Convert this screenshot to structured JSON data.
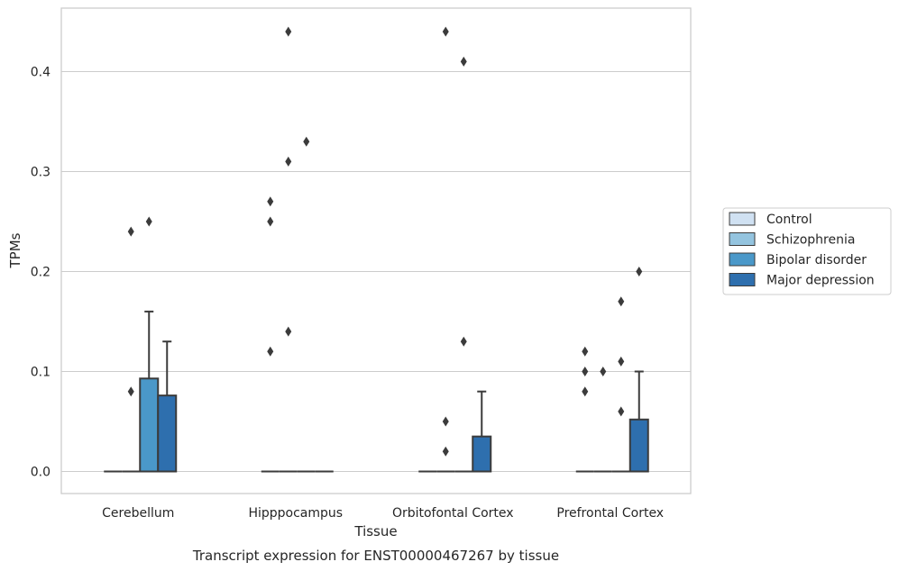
{
  "caption": "Transcript expression for ENST00000467267 by tissue",
  "chart_data": {
    "type": "box",
    "xlabel": "Tissue",
    "ylabel": "TPMs",
    "ylim": [
      -0.022,
      0.465
    ],
    "yticks": [
      0.0,
      0.1,
      0.2,
      0.3,
      0.4
    ],
    "ytick_labels": [
      "0.0",
      "0.1",
      "0.2",
      "0.3",
      "0.4"
    ],
    "grid": "horizontal",
    "legend_position": "right",
    "categories": [
      "Cerebellum",
      "Hipppocampus",
      "Orbitofontal Cortex",
      "Prefrontal Cortex"
    ],
    "series": [
      {
        "name": "Control",
        "color": "#d0e1f2",
        "boxes": [
          {
            "q1": 0,
            "median": 0,
            "q3": 0,
            "whisker_low": 0,
            "whisker_high": 0,
            "outliers": []
          },
          {
            "q1": 0,
            "median": 0,
            "q3": 0,
            "whisker_low": 0,
            "whisker_high": 0,
            "outliers": [
              0.12,
              0.25,
              0.27
            ]
          },
          {
            "q1": 0,
            "median": 0,
            "q3": 0,
            "whisker_low": 0,
            "whisker_high": 0,
            "outliers": []
          },
          {
            "q1": 0,
            "median": 0,
            "q3": 0,
            "whisker_low": 0,
            "whisker_high": 0,
            "outliers": [
              0.08,
              0.1,
              0.12
            ]
          }
        ]
      },
      {
        "name": "Schizophrenia",
        "color": "#94c4df",
        "boxes": [
          {
            "q1": 0,
            "median": 0,
            "q3": 0,
            "whisker_low": 0,
            "whisker_high": 0,
            "outliers": [
              0.08,
              0.24
            ]
          },
          {
            "q1": 0,
            "median": 0,
            "q3": 0,
            "whisker_low": 0,
            "whisker_high": 0,
            "outliers": [
              0.14,
              0.31,
              0.44
            ]
          },
          {
            "q1": 0,
            "median": 0,
            "q3": 0,
            "whisker_low": 0,
            "whisker_high": 0,
            "outliers": [
              0.02,
              0.05,
              0.44
            ]
          },
          {
            "q1": 0,
            "median": 0,
            "q3": 0,
            "whisker_low": 0,
            "whisker_high": 0,
            "outliers": [
              0.1
            ]
          }
        ]
      },
      {
        "name": "Bipolar disorder",
        "color": "#4a98c9",
        "boxes": [
          {
            "q1": 0,
            "median": 0,
            "q3": 0.093,
            "whisker_low": 0,
            "whisker_high": 0.16,
            "outliers": [
              0.25
            ]
          },
          {
            "q1": 0,
            "median": 0,
            "q3": 0,
            "whisker_low": 0,
            "whisker_high": 0,
            "outliers": [
              0.33
            ]
          },
          {
            "q1": 0,
            "median": 0,
            "q3": 0,
            "whisker_low": 0,
            "whisker_high": 0,
            "outliers": [
              0.13,
              0.41
            ]
          },
          {
            "q1": 0,
            "median": 0,
            "q3": 0,
            "whisker_low": 0,
            "whisker_high": 0,
            "outliers": [
              0.06,
              0.11,
              0.17
            ]
          }
        ]
      },
      {
        "name": "Major depression",
        "color": "#2e6fae",
        "boxes": [
          {
            "q1": 0,
            "median": 0,
            "q3": 0.076,
            "whisker_low": 0,
            "whisker_high": 0.13,
            "outliers": []
          },
          {
            "q1": 0,
            "median": 0,
            "q3": 0,
            "whisker_low": 0,
            "whisker_high": 0,
            "outliers": []
          },
          {
            "q1": 0,
            "median": 0,
            "q3": 0.035,
            "whisker_low": 0,
            "whisker_high": 0.08,
            "outliers": []
          },
          {
            "q1": 0,
            "median": 0,
            "q3": 0.052,
            "whisker_low": 0,
            "whisker_high": 0.1,
            "outliers": [
              0.2
            ]
          }
        ]
      }
    ]
  }
}
